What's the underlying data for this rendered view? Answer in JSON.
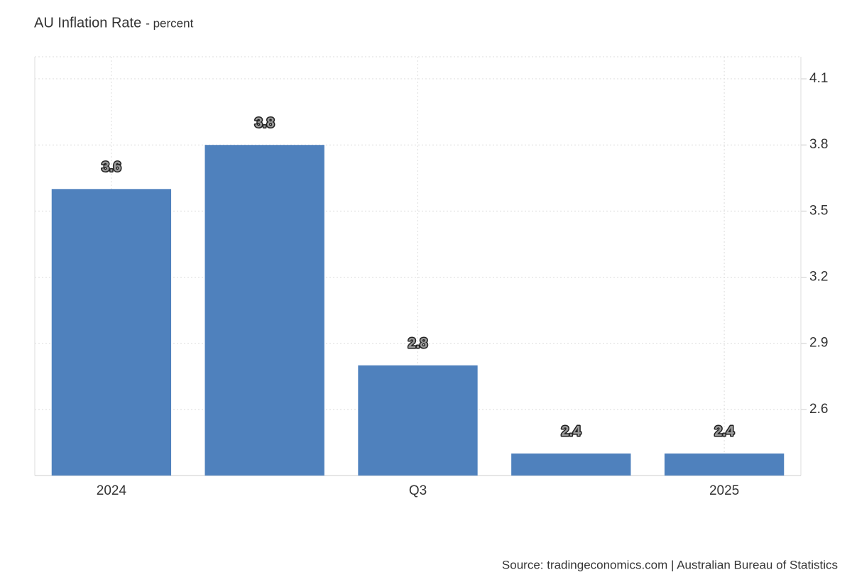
{
  "chart_data": {
    "type": "bar",
    "title": "AU Inflation Rate",
    "subtitle": "- percent",
    "categories": [
      "2024",
      null,
      "Q3",
      null,
      "2025"
    ],
    "values": [
      3.6,
      3.8,
      2.8,
      2.4,
      2.4
    ],
    "color": "#4f81bd",
    "ylim": [
      2.3,
      4.2
    ],
    "yticks": [
      2.6,
      2.9,
      3.2,
      3.5,
      3.8,
      4.1
    ],
    "grid": true,
    "y_axis_side": "right",
    "source": "Source: tradingeconomics.com | Australian Bureau of Statistics"
  }
}
